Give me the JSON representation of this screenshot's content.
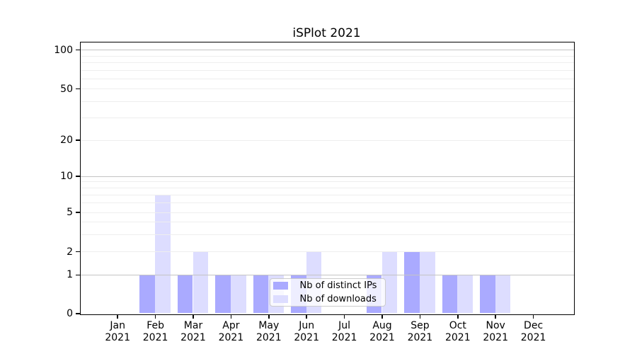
{
  "chart_data": {
    "type": "bar",
    "title": "iSPlot 2021",
    "categories": [
      {
        "month": "Jan",
        "year": "2021"
      },
      {
        "month": "Feb",
        "year": "2021"
      },
      {
        "month": "Mar",
        "year": "2021"
      },
      {
        "month": "Apr",
        "year": "2021"
      },
      {
        "month": "May",
        "year": "2021"
      },
      {
        "month": "Jun",
        "year": "2021"
      },
      {
        "month": "Jul",
        "year": "2021"
      },
      {
        "month": "Aug",
        "year": "2021"
      },
      {
        "month": "Sep",
        "year": "2021"
      },
      {
        "month": "Oct",
        "year": "2021"
      },
      {
        "month": "Nov",
        "year": "2021"
      },
      {
        "month": "Dec",
        "year": "2021"
      }
    ],
    "series": [
      {
        "name": "Nb of distinct IPs",
        "color": "#aaaaff",
        "values": [
          0,
          1,
          1,
          1,
          1,
          1,
          0,
          1,
          2,
          1,
          1,
          0
        ]
      },
      {
        "name": "Nb of downloads",
        "color": "#ddddff",
        "values": [
          0,
          7,
          2,
          1,
          1,
          2,
          0,
          2,
          2,
          1,
          1,
          0
        ]
      }
    ],
    "yticks": [
      0,
      1,
      2,
      5,
      10,
      20,
      50,
      100
    ],
    "ylim": [
      0,
      100
    ],
    "yscale": "log above 1, linear 0-1 (symlog)",
    "grid": true,
    "legend_position": "inside lower-center"
  },
  "colors": {
    "background": "#ffffff",
    "axis": "#000000",
    "text": "#000000",
    "grid_minor": "#eeeeee",
    "grid_major": "#c4c4c4",
    "legend_border": "#cccccc",
    "legend_background": "rgba(255,255,255,0.8)"
  }
}
